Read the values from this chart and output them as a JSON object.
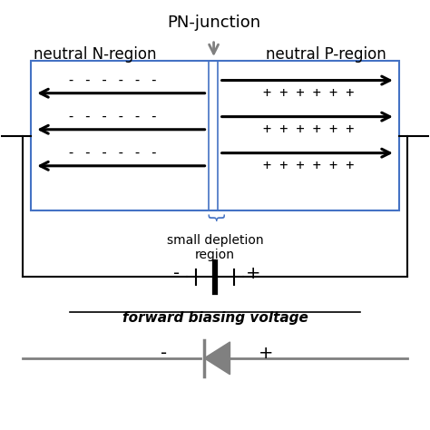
{
  "title": "PN-junction",
  "neutral_n": "neutral N-region",
  "neutral_p": "neutral P-region",
  "small_depletion": "small depletion\nregion",
  "forward_biasing": "forward biasing voltage",
  "bg_color": "#ffffff",
  "box_color": "#4472c4",
  "junction_color": "#4472c4",
  "text_color": "#000000",
  "gray_color": "#808080"
}
